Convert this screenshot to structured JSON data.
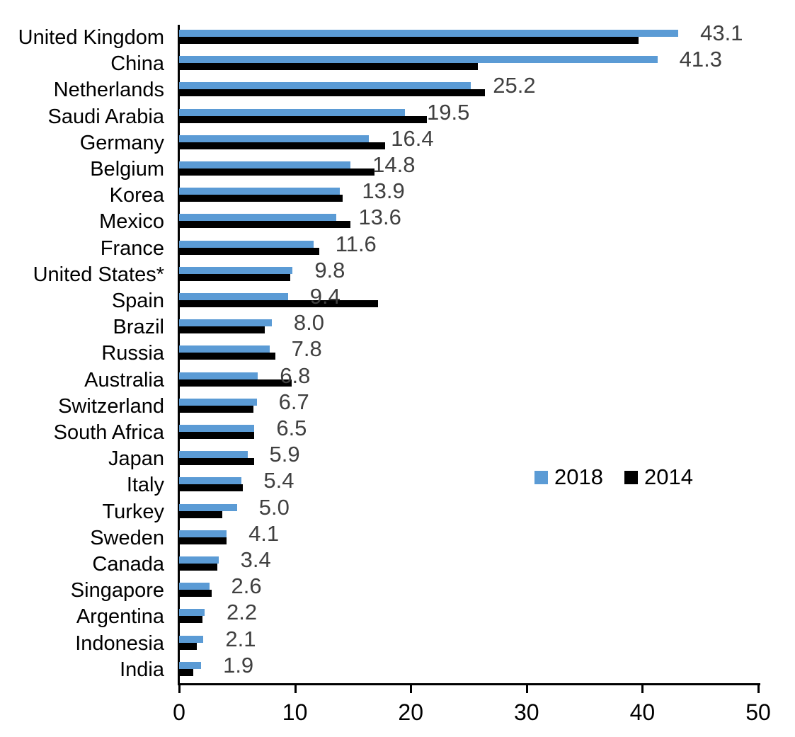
{
  "chart_data": {
    "type": "bar",
    "orientation": "horizontal",
    "title": "",
    "xlabel": "",
    "ylabel": "",
    "xlim": [
      0,
      50
    ],
    "x_ticks": [
      "0",
      "10",
      "20",
      "30",
      "40",
      "50"
    ],
    "grid": false,
    "legend_position": "middle-right",
    "categories": [
      "United Kingdom",
      "China",
      "Netherlands",
      "Saudi Arabia",
      "Germany",
      "Belgium",
      "Korea",
      "Mexico",
      "France",
      "United States*",
      "Spain",
      "Brazil",
      "Russia",
      "Australia",
      "Switzerland",
      "South Africa",
      "Japan",
      "Italy",
      "Turkey",
      "Sweden",
      "Canada",
      "Singapore",
      "Argentina",
      "Indonesia",
      "India"
    ],
    "series": [
      {
        "name": "2018",
        "color": "#5B9BD5",
        "values": [
          43.1,
          41.3,
          25.2,
          19.5,
          16.4,
          14.8,
          13.9,
          13.6,
          11.6,
          9.8,
          9.4,
          8.0,
          7.8,
          6.8,
          6.7,
          6.5,
          5.9,
          5.4,
          5.0,
          4.1,
          3.4,
          2.6,
          2.2,
          2.1,
          1.9
        ]
      },
      {
        "name": "2014",
        "color": "#000000",
        "values": [
          39.7,
          25.8,
          26.4,
          21.4,
          17.8,
          16.9,
          14.1,
          14.8,
          12.1,
          9.6,
          17.2,
          7.4,
          8.3,
          9.7,
          6.4,
          6.5,
          6.5,
          5.5,
          3.7,
          4.1,
          3.3,
          2.8,
          2.0,
          1.5,
          1.2
        ]
      }
    ],
    "data_labels": [
      "43.1",
      "41.3",
      "25.2",
      "19.5",
      "16.4",
      "14.8",
      "13.9",
      "13.6",
      "11.6",
      "9.8",
      "9.4",
      "8.0",
      "7.8",
      "6.8",
      "6.7",
      "6.5",
      "5.9",
      "5.4",
      "5.0",
      "4.1",
      "3.4",
      "2.6",
      "2.2",
      "2.1",
      "1.9"
    ]
  },
  "colors": {
    "series_2018": "#5B9BD5",
    "series_2014": "#000000",
    "value_label": "#404040",
    "axis": "#000000",
    "background": "#FFFFFF"
  }
}
